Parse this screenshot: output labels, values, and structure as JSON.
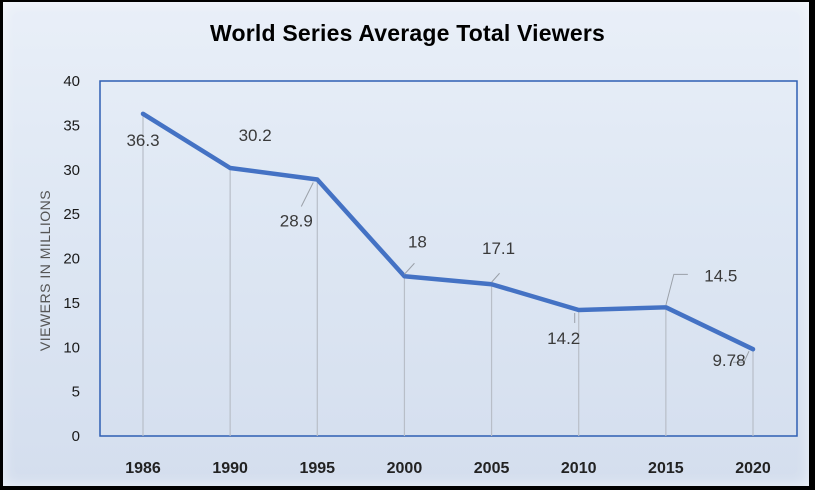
{
  "chart_data": {
    "type": "line",
    "title": "World Series Average Total Viewers",
    "xlabel": "",
    "ylabel": "VIEWERS IN MILLIONS",
    "categories": [
      "1986",
      "1990",
      "1995",
      "2000",
      "2005",
      "2010",
      "2015",
      "2020"
    ],
    "series": [
      {
        "name": "Average Total Viewers",
        "values": [
          36.3,
          30.2,
          28.9,
          18,
          17.1,
          14.2,
          14.5,
          9.78
        ]
      }
    ],
    "data_labels": [
      "36.3",
      "30.2",
      "28.9",
      "18",
      "17.1",
      "14.2",
      "14.5",
      "9.78"
    ],
    "ylim": [
      0,
      40
    ],
    "yticks": [
      0,
      5,
      10,
      15,
      20,
      25,
      30,
      35,
      40
    ],
    "line_color": "#4472c4",
    "axis_color": "#2f5fb3",
    "drop_line_color": "#b8bec8"
  }
}
